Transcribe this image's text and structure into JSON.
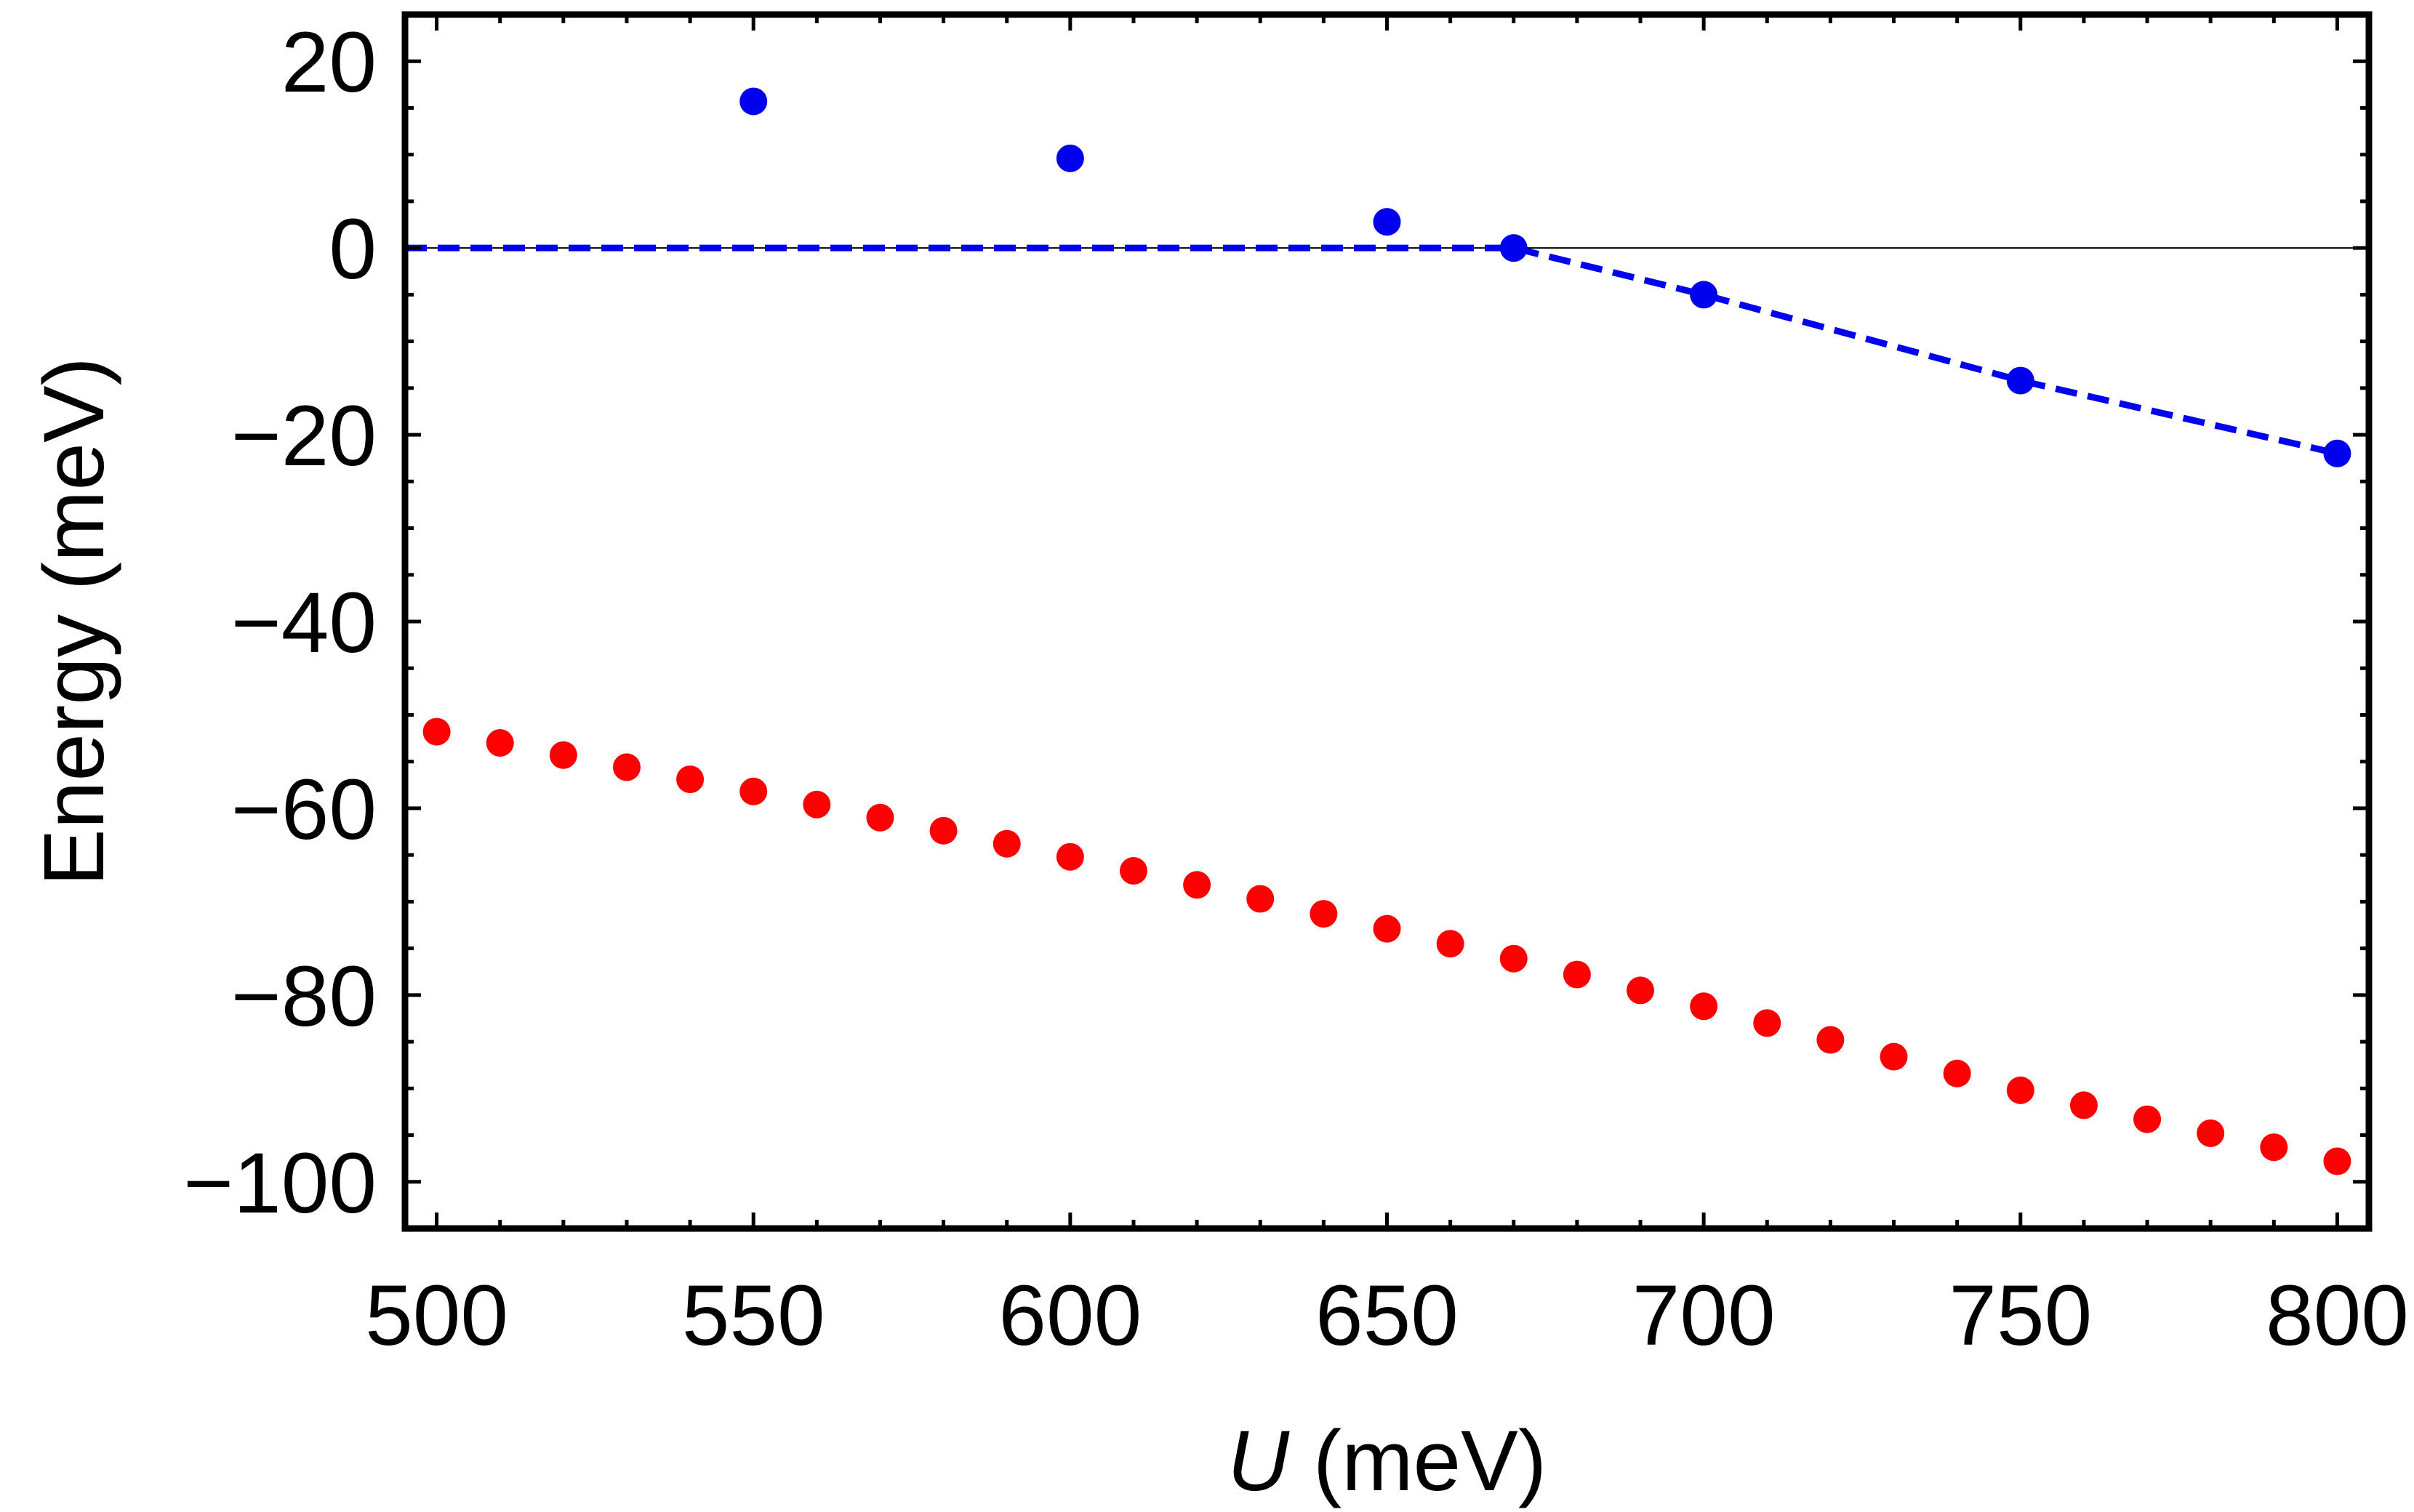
{
  "chart_data": {
    "type": "scatter",
    "xlabel": {
      "symbol": "U",
      "unit": " (meV)"
    },
    "ylabel": "Energy (meV)",
    "xlim": [
      495,
      805
    ],
    "ylim": [
      -105,
      25
    ],
    "xticks": [
      500,
      550,
      600,
      650,
      700,
      750,
      800
    ],
    "xtick_labels": [
      "500",
      "550",
      "600",
      "650",
      "700",
      "750",
      "800"
    ],
    "yticks": [
      20,
      0,
      -20,
      -40,
      -60,
      -80,
      -100
    ],
    "ytick_labels": [
      "20",
      "0",
      "−20",
      "−40",
      "−60",
      "−80",
      "−100"
    ],
    "reference_line_y": 0,
    "series": [
      {
        "color": "#0000ee",
        "x": [
          550,
          600,
          650,
          670,
          700,
          750,
          800
        ],
        "y": [
          15.7,
          9.6,
          2.8,
          0.0,
          -5.0,
          -14.2,
          -22.0
        ]
      },
      {
        "color": "#ff0000",
        "x": [
          500,
          510,
          520,
          530,
          540,
          550,
          560,
          570,
          580,
          590,
          600,
          610,
          620,
          630,
          640,
          650,
          660,
          670,
          680,
          690,
          700,
          710,
          720,
          730,
          740,
          750,
          760,
          770,
          780,
          790,
          800
        ],
        "y": [
          -51.8,
          -53.0,
          -54.3,
          -55.6,
          -56.9,
          -58.2,
          -59.6,
          -61.0,
          -62.4,
          -63.8,
          -65.2,
          -66.7,
          -68.2,
          -69.7,
          -71.3,
          -72.9,
          -74.5,
          -76.1,
          -77.8,
          -79.5,
          -81.2,
          -83.0,
          -84.8,
          -86.6,
          -88.4,
          -90.2,
          -91.8,
          -93.3,
          -94.8,
          -96.3,
          -97.8
        ]
      }
    ],
    "dashed_line": {
      "color": "#0000ee",
      "x": [
        495,
        670,
        700,
        750,
        800
      ],
      "y": [
        0,
        0,
        -5.0,
        -14.2,
        -22.0
      ]
    }
  }
}
